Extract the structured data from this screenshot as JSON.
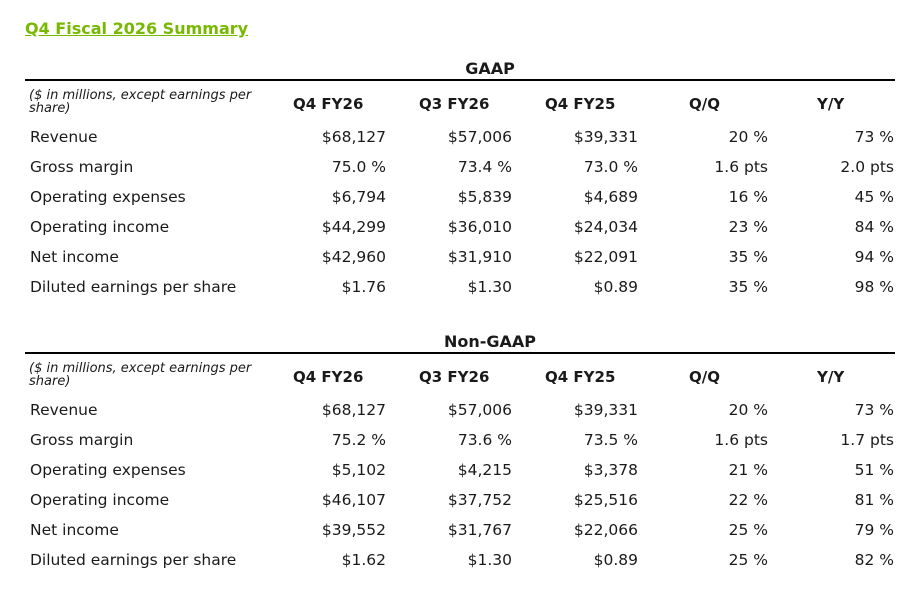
{
  "page_title": "Q4 Fiscal 2026 Summary",
  "columns": [
    "Q4 FY26",
    "Q3 FY26",
    "Q4 FY25",
    "Q/Q",
    "Y/Y"
  ],
  "unit_note": "($ in millions, except earnings per share)",
  "gaap": {
    "heading": "GAAP",
    "rows": [
      {
        "label": "Revenue",
        "values": [
          "$68,127",
          "$57,006",
          "$39,331",
          "20 %",
          "73 %"
        ]
      },
      {
        "label": "Gross margin",
        "values": [
          "75.0 %",
          "73.4 %",
          "73.0 %",
          "1.6 pts",
          "2.0 pts"
        ]
      },
      {
        "label": "Operating expenses",
        "values": [
          "$6,794",
          "$5,839",
          "$4,689",
          "16 %",
          "45 %"
        ]
      },
      {
        "label": "Operating income",
        "values": [
          "$44,299",
          "$36,010",
          "$24,034",
          "23 %",
          "84 %"
        ]
      },
      {
        "label": "Net income",
        "values": [
          "$42,960",
          "$31,910",
          "$22,091",
          "35 %",
          "94 %"
        ]
      },
      {
        "label": "Diluted earnings per share",
        "values": [
          "$1.76",
          "$1.30",
          "$0.89",
          "35 %",
          "98 %"
        ]
      }
    ]
  },
  "nongaap": {
    "heading": "Non-GAAP",
    "rows": [
      {
        "label": "Revenue",
        "values": [
          "$68,127",
          "$57,006",
          "$39,331",
          "20 %",
          "73 %"
        ]
      },
      {
        "label": "Gross margin",
        "values": [
          "75.2 %",
          "73.6 %",
          "73.5 %",
          "1.6 pts",
          "1.7 pts"
        ]
      },
      {
        "label": "Operating expenses",
        "values": [
          "$5,102",
          "$4,215",
          "$3,378",
          "21 %",
          "51 %"
        ]
      },
      {
        "label": "Operating income",
        "values": [
          "$46,107",
          "$37,752",
          "$25,516",
          "22 %",
          "81 %"
        ]
      },
      {
        "label": "Net income",
        "values": [
          "$39,552",
          "$31,767",
          "$22,066",
          "25 %",
          "79 %"
        ]
      },
      {
        "label": "Diluted earnings per share",
        "values": [
          "$1.62",
          "$1.30",
          "$0.89",
          "25 %",
          "82 %"
        ]
      }
    ]
  }
}
